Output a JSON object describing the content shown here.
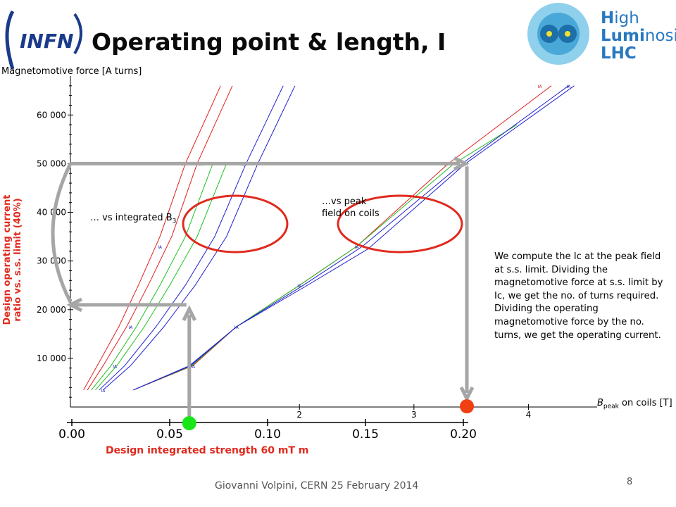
{
  "slide": {
    "title": "Operating point & length, I",
    "infn_logo_text": "INFN",
    "hl_logo": {
      "line1_bold": "H",
      "line1_rest": "igh",
      "line2_bold": "Lumi",
      "line2_rest": "nosity",
      "line3": "LHC",
      "color": "#2878c0"
    },
    "footer": "Giovanni  Volpini,  CERN  25 February 2014",
    "page_number": "8",
    "annotation_integrated": "… vs integrated B",
    "annotation_integrated_sub": "3",
    "annotation_peak_line1": "…vs peak",
    "annotation_peak_line2": "field on coils",
    "rotated_label_line1": "Design operating current",
    "rotated_label_line2": "ratio vs. s.s. limit (40%)",
    "bottom_axis_title": "Design integrated strength 60 mT m",
    "explanation": "We compute the Ic at the peak field at s.s. limit. Dividing the magnetomotive force at s.s. limit by Ic, we get the no. of turns required. Dividing the operating magnetomotive force by the no. turns, we get the operating current.",
    "colors": {
      "accent_red": "#e02a1e",
      "arrow_gray": "#a6a6a6",
      "green_dot": "#19e619",
      "red_dot": "#f04012"
    }
  },
  "chart_data": {
    "type": "line",
    "ylabel": "Magnetomotive force [A turns]",
    "xlabel_top": "B",
    "xlabel_top_sub": "peak",
    "xlabel_top_rest": " on coils [T]",
    "ylim": [
      0,
      68000
    ],
    "y_ticks": [
      {
        "v": 10000,
        "label": "10 000"
      },
      {
        "v": 20000,
        "label": "20 000"
      },
      {
        "v": 30000,
        "label": "30 000"
      },
      {
        "v": 40000,
        "label": "40 000"
      },
      {
        "v": 50000,
        "label": "50 000"
      },
      {
        "v": 60000,
        "label": "60 000"
      }
    ],
    "x_top": {
      "range": [
        0,
        4.6
      ],
      "ticks": [
        {
          "v": 2,
          "label": "2"
        },
        {
          "v": 3,
          "label": "3"
        },
        {
          "v": 4,
          "label": "4"
        }
      ]
    },
    "x_bottom": {
      "range": [
        0,
        0.2
      ],
      "ticks": [
        {
          "v": 0.0,
          "label": "0.00"
        },
        {
          "v": 0.05,
          "label": "0.05"
        },
        {
          "v": 0.1,
          "label": "0.10"
        },
        {
          "v": 0.15,
          "label": "0.15"
        },
        {
          "v": 0.2,
          "label": "0.20"
        }
      ]
    },
    "series_integrated": [
      {
        "color": "#e02020",
        "points": [
          [
            0.006,
            3500
          ],
          [
            0.013,
            8500
          ],
          [
            0.024,
            16500
          ],
          [
            0.034,
            25000
          ],
          [
            0.045,
            35000
          ],
          [
            0.058,
            50000
          ],
          [
            0.076,
            66000
          ]
        ]
      },
      {
        "color": "#e02020",
        "points": [
          [
            0.008,
            3500
          ],
          [
            0.016,
            8500
          ],
          [
            0.028,
            16500
          ],
          [
            0.039,
            25000
          ],
          [
            0.051,
            35000
          ],
          [
            0.064,
            50000
          ],
          [
            0.082,
            66000
          ]
        ]
      },
      {
        "color": "#20c020",
        "points": [
          [
            0.01,
            3500
          ],
          [
            0.02,
            8500
          ],
          [
            0.033,
            16500
          ],
          [
            0.045,
            25000
          ],
          [
            0.058,
            35000
          ],
          [
            0.072,
            50000
          ]
        ]
      },
      {
        "color": "#20c020",
        "points": [
          [
            0.012,
            3500
          ],
          [
            0.023,
            8500
          ],
          [
            0.037,
            16500
          ],
          [
            0.05,
            25000
          ],
          [
            0.064,
            35000
          ],
          [
            0.079,
            50000
          ]
        ]
      },
      {
        "color": "#2020d0",
        "points": [
          [
            0.014,
            3500
          ],
          [
            0.027,
            8500
          ],
          [
            0.043,
            16500
          ],
          [
            0.058,
            25000
          ],
          [
            0.073,
            35000
          ],
          [
            0.089,
            50000
          ],
          [
            0.108,
            66000
          ]
        ]
      },
      {
        "color": "#2020d0",
        "points": [
          [
            0.016,
            3500
          ],
          [
            0.03,
            8500
          ],
          [
            0.047,
            16500
          ],
          [
            0.063,
            25000
          ],
          [
            0.079,
            35000
          ],
          [
            0.095,
            50000
          ],
          [
            0.114,
            66000
          ]
        ]
      }
    ],
    "series_peak": [
      {
        "color": "#e02020",
        "points": [
          [
            0.55,
            3500
          ],
          [
            1.07,
            8500
          ],
          [
            1.45,
            16500
          ],
          [
            2.0,
            25000
          ],
          [
            2.5,
            33000
          ],
          [
            3.3,
            50000
          ],
          [
            4.2,
            66000
          ]
        ]
      },
      {
        "color": "#20c020",
        "points": [
          [
            0.55,
            3500
          ],
          [
            1.06,
            8500
          ],
          [
            1.45,
            16500
          ],
          [
            2.0,
            25000
          ],
          [
            2.5,
            33000
          ],
          [
            3.35,
            50000
          ],
          [
            3.9,
            58000
          ]
        ]
      },
      {
        "color": "#2020d0",
        "points": [
          [
            0.55,
            3500
          ],
          [
            1.05,
            8500
          ],
          [
            1.45,
            16500
          ],
          [
            2.02,
            24800
          ],
          [
            2.55,
            33000
          ],
          [
            3.42,
            50000
          ],
          [
            4.35,
            66000
          ]
        ]
      },
      {
        "color": "#2020d0",
        "points": [
          [
            0.55,
            3500
          ],
          [
            1.04,
            8500
          ],
          [
            1.45,
            16500
          ],
          [
            2.04,
            24600
          ],
          [
            2.6,
            32500
          ],
          [
            3.45,
            50000
          ],
          [
            4.4,
            66000
          ]
        ]
      }
    ],
    "marker_labels": [
      {
        "text": "IA",
        "color": "#c02020",
        "b": 0.057,
        "y": 50000
      },
      {
        "text": "IA",
        "color": "#20a020",
        "b": 0.066,
        "y": 50000
      },
      {
        "text": "IA",
        "color": "#2020c0",
        "b": 0.088,
        "y": 50000
      },
      {
        "text": "IA",
        "color": "#2020c0",
        "b": 0.045,
        "y": 33000
      },
      {
        "text": "IA",
        "color": "#2020c0",
        "b": 0.03,
        "y": 16500
      },
      {
        "text": "IA",
        "color": "#2020c0",
        "b": 0.022,
        "y": 8500
      },
      {
        "text": "IA",
        "color": "#2020c0",
        "b": 0.016,
        "y": 3500
      },
      {
        "text": "IA",
        "color": "#c02020",
        "t": 3.28,
        "y": 50000
      },
      {
        "text": "IA",
        "color": "#2020c0",
        "t": 3.45,
        "y": 50000
      },
      {
        "text": "IA",
        "color": "#2020c0",
        "t": 2.5,
        "y": 33000
      },
      {
        "text": "IA",
        "color": "#2020c0",
        "t": 2.0,
        "y": 25000
      },
      {
        "text": "IA",
        "color": "#2020c0",
        "t": 1.45,
        "y": 16500
      },
      {
        "text": "IA",
        "color": "#2020c0",
        "t": 1.07,
        "y": 8500
      },
      {
        "text": "IA",
        "color": "#c02020",
        "t": 4.1,
        "y": 66000
      },
      {
        "text": "IA",
        "color": "#2020c0",
        "t": 4.35,
        "y": 66000
      }
    ],
    "operating_point": {
      "B_peak": 3.45,
      "mmf_ss_limit": 50000,
      "mmf_operating": 21000,
      "integrated_strength": 0.06
    }
  }
}
